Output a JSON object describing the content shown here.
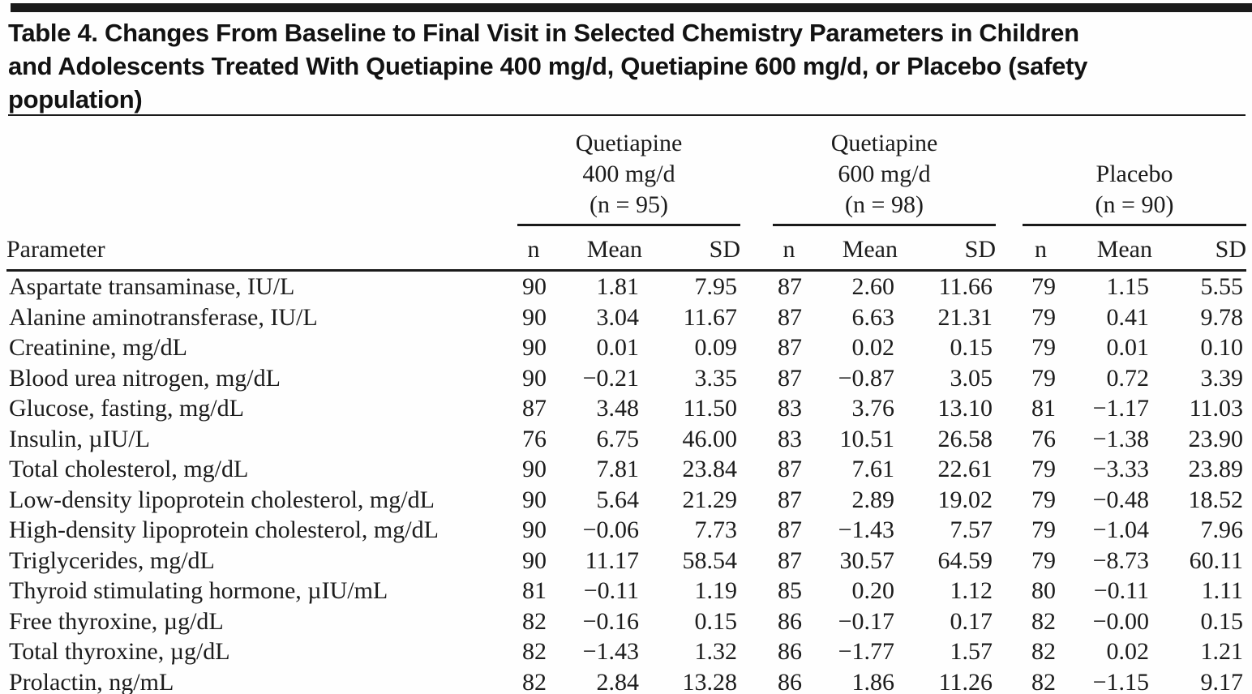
{
  "title_lines": [
    "Table 4. Changes From Baseline to Final Visit in Selected Chemistry Parameters in Children",
    "and Adolescents Treated With Quetiapine 400 mg/d, Quetiapine 600 mg/d, or Placebo (safety",
    "population)"
  ],
  "table": {
    "param_header": "Parameter",
    "sub_headers": [
      "n",
      "Mean",
      "SD"
    ],
    "groups": [
      {
        "label_lines": [
          "Quetiapine",
          "400 mg/d",
          "(n = 95)"
        ]
      },
      {
        "label_lines": [
          "Quetiapine",
          "600 mg/d",
          "(n = 98)"
        ]
      },
      {
        "label_lines": [
          "Placebo",
          "(n = 90)"
        ]
      }
    ],
    "rows": [
      {
        "parameter": "Aspartate transaminase, IU/L",
        "q400": [
          "90",
          "1.81",
          "7.95"
        ],
        "q600": [
          "87",
          "2.60",
          "11.66"
        ],
        "placebo": [
          "79",
          "1.15",
          "5.55"
        ]
      },
      {
        "parameter": "Alanine aminotransferase, IU/L",
        "q400": [
          "90",
          "3.04",
          "11.67"
        ],
        "q600": [
          "87",
          "6.63",
          "21.31"
        ],
        "placebo": [
          "79",
          "0.41",
          "9.78"
        ]
      },
      {
        "parameter": "Creatinine, mg/dL",
        "q400": [
          "90",
          "0.01",
          "0.09"
        ],
        "q600": [
          "87",
          "0.02",
          "0.15"
        ],
        "placebo": [
          "79",
          "0.01",
          "0.10"
        ]
      },
      {
        "parameter": "Blood urea nitrogen, mg/dL",
        "q400": [
          "90",
          "−0.21",
          "3.35"
        ],
        "q600": [
          "87",
          "−0.87",
          "3.05"
        ],
        "placebo": [
          "79",
          "0.72",
          "3.39"
        ]
      },
      {
        "parameter": "Glucose, fasting, mg/dL",
        "q400": [
          "87",
          "3.48",
          "11.50"
        ],
        "q600": [
          "83",
          "3.76",
          "13.10"
        ],
        "placebo": [
          "81",
          "−1.17",
          "11.03"
        ]
      },
      {
        "parameter": "Insulin, µIU/L",
        "q400": [
          "76",
          "6.75",
          "46.00"
        ],
        "q600": [
          "83",
          "10.51",
          "26.58"
        ],
        "placebo": [
          "76",
          "−1.38",
          "23.90"
        ]
      },
      {
        "parameter": "Total cholesterol, mg/dL",
        "q400": [
          "90",
          "7.81",
          "23.84"
        ],
        "q600": [
          "87",
          "7.61",
          "22.61"
        ],
        "placebo": [
          "79",
          "−3.33",
          "23.89"
        ]
      },
      {
        "parameter": "Low-density lipoprotein cholesterol, mg/dL",
        "q400": [
          "90",
          "5.64",
          "21.29"
        ],
        "q600": [
          "87",
          "2.89",
          "19.02"
        ],
        "placebo": [
          "79",
          "−0.48",
          "18.52"
        ]
      },
      {
        "parameter": "High-density lipoprotein cholesterol, mg/dL",
        "q400": [
          "90",
          "−0.06",
          "7.73"
        ],
        "q600": [
          "87",
          "−1.43",
          "7.57"
        ],
        "placebo": [
          "79",
          "−1.04",
          "7.96"
        ]
      },
      {
        "parameter": "Triglycerides, mg/dL",
        "q400": [
          "90",
          "11.17",
          "58.54"
        ],
        "q600": [
          "87",
          "30.57",
          "64.59"
        ],
        "placebo": [
          "79",
          "−8.73",
          "60.11"
        ]
      },
      {
        "parameter": "Thyroid stimulating hormone, µIU/mL",
        "q400": [
          "81",
          "−0.11",
          "1.19"
        ],
        "q600": [
          "85",
          "0.20",
          "1.12"
        ],
        "placebo": [
          "80",
          "−0.11",
          "1.11"
        ]
      },
      {
        "parameter": "Free thyroxine, µg/dL",
        "q400": [
          "82",
          "−0.16",
          "0.15"
        ],
        "q600": [
          "86",
          "−0.17",
          "0.17"
        ],
        "placebo": [
          "82",
          "−0.00",
          "0.15"
        ]
      },
      {
        "parameter": "Total thyroxine, µg/dL",
        "q400": [
          "82",
          "−1.43",
          "1.32"
        ],
        "q600": [
          "86",
          "−1.77",
          "1.57"
        ],
        "placebo": [
          "82",
          "0.02",
          "1.21"
        ]
      },
      {
        "parameter": "Prolactin, ng/mL",
        "q400": [
          "82",
          "2.84",
          "13.28"
        ],
        "q600": [
          "86",
          "1.86",
          "11.26"
        ],
        "placebo": [
          "82",
          "−1.15",
          "9.17"
        ]
      }
    ]
  }
}
